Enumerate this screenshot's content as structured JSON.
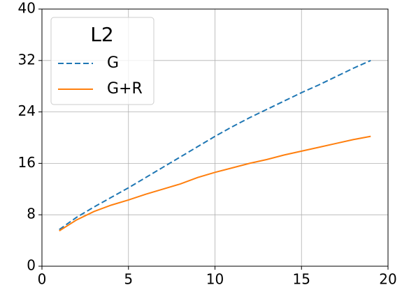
{
  "chart_data": {
    "type": "line",
    "x": [
      1,
      2,
      3,
      4,
      5,
      6,
      7,
      8,
      9,
      10,
      11,
      12,
      13,
      14,
      15,
      16,
      17,
      18,
      19
    ],
    "series": [
      {
        "name": "G",
        "color": "#1f77b4",
        "linestyle": "dashed",
        "values": [
          5.7,
          7.6,
          9.2,
          10.7,
          12.2,
          13.8,
          15.4,
          17.0,
          18.6,
          20.2,
          21.7,
          23.1,
          24.4,
          25.7,
          27.0,
          28.2,
          29.5,
          30.8,
          32.0
        ]
      },
      {
        "name": "G+R",
        "color": "#ff7f0e",
        "linestyle": "solid",
        "values": [
          5.5,
          7.2,
          8.5,
          9.5,
          10.3,
          11.2,
          12.0,
          12.8,
          13.8,
          14.6,
          15.3,
          16.0,
          16.6,
          17.3,
          17.9,
          18.5,
          19.1,
          19.7,
          20.2
        ]
      }
    ],
    "xlim": [
      0,
      20
    ],
    "xticks": [
      0,
      5,
      10,
      15,
      20
    ],
    "ylim": [
      0,
      40
    ],
    "yticks": [
      0,
      8,
      16,
      24,
      32,
      40
    ],
    "grid": true,
    "legend_title": "L2",
    "legend_position": "upper left"
  }
}
